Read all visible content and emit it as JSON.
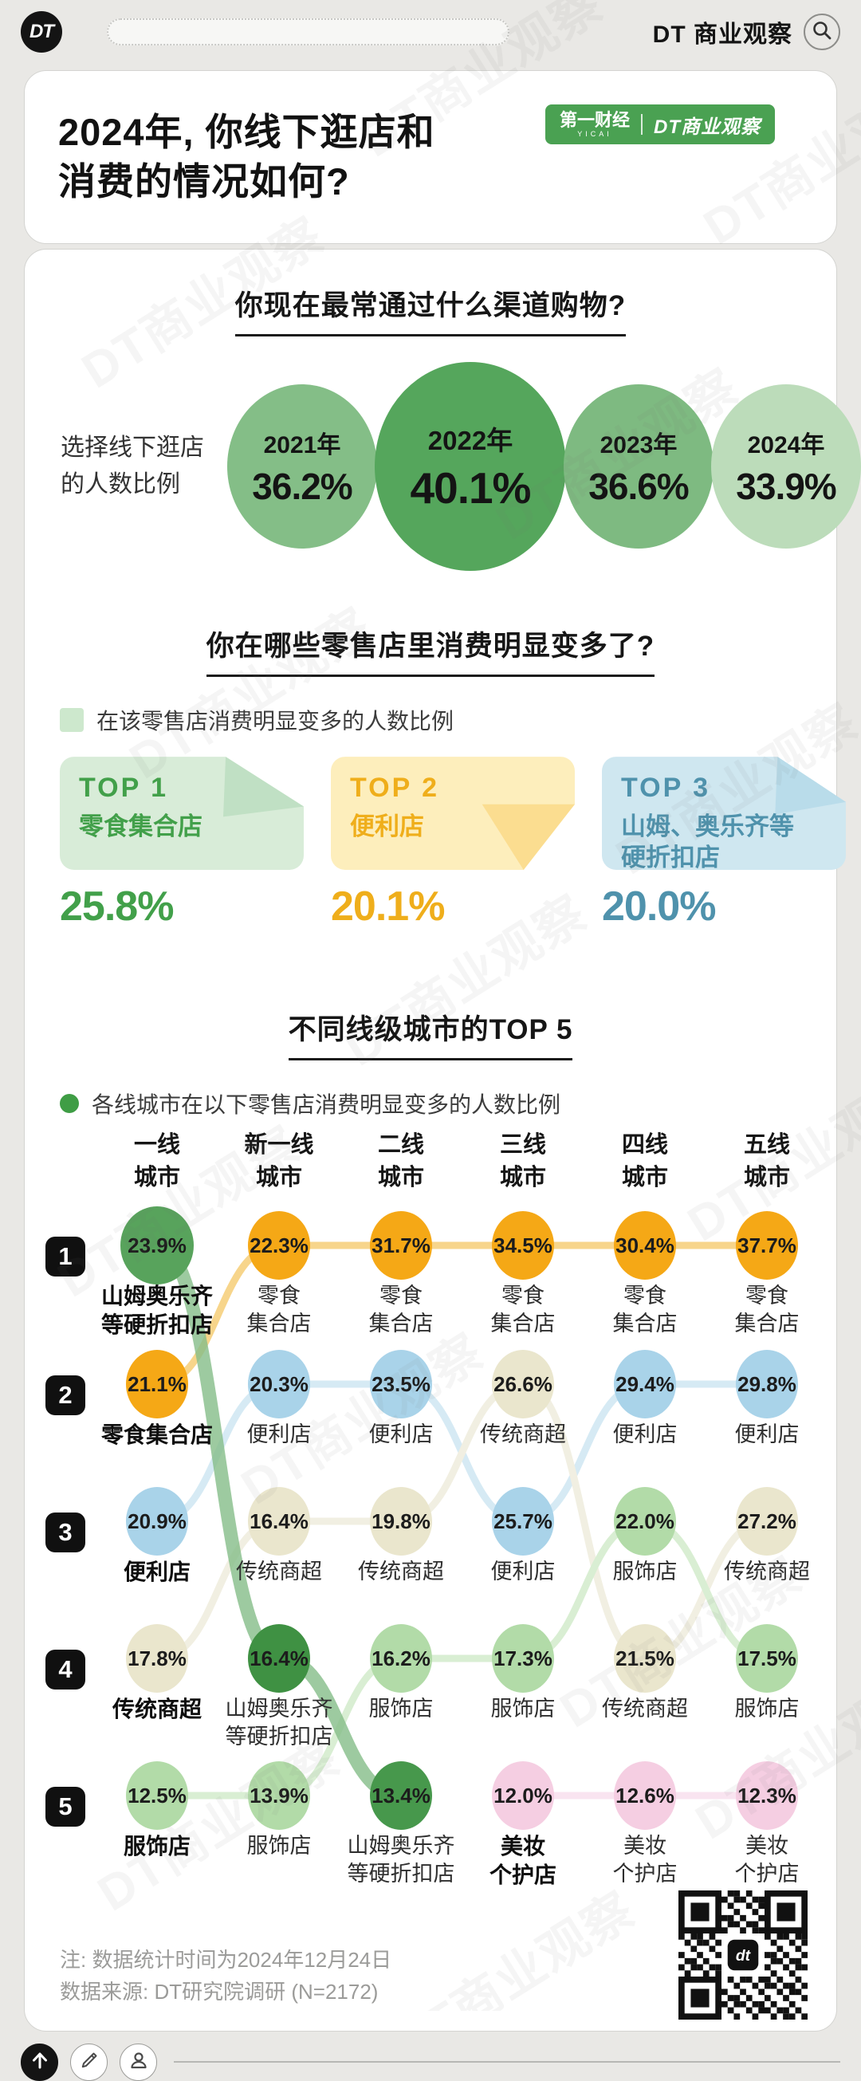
{
  "watermark": "DT商业观察",
  "qr_logo": "dt",
  "top_bar": {
    "logo": "DT",
    "brand": "DT 商业观察",
    "icons": {
      "search": "magnifier"
    }
  },
  "title_card": {
    "title_line1": "2024年, 你线下逛店和",
    "title_line2": "消费的情况如何?",
    "badge": {
      "left": "第一财经",
      "left_sub": "YICAI",
      "right": "DT商业观察",
      "bg": "#4aa152"
    }
  },
  "section1": {
    "heading": "你现在最常通过什么渠道购物?",
    "side_label": "选择线下逛店\n的人数比例",
    "bubbles": [
      {
        "year": "2021年",
        "value": "36.2%",
        "color": "#84be87",
        "big": false
      },
      {
        "year": "2022年",
        "value": "40.1%",
        "color": "#55a65c",
        "big": true
      },
      {
        "year": "2023年",
        "value": "36.6%",
        "color": "#7eba81",
        "big": false
      },
      {
        "year": "2024年",
        "value": "33.9%",
        "color": "#bcdcba",
        "big": false
      }
    ]
  },
  "section2": {
    "heading": "你在哪些零售店里消费明显变多了?",
    "legend": "在该零售店消费明显变多的人数比例",
    "legend_color": "#cde8cd",
    "cards": [
      {
        "rank": "TOP 1",
        "name": "零食集合店",
        "value": "25.8%",
        "bg": "#d8ecd8",
        "fold": "#c0e0c4",
        "color": "#42a04a"
      },
      {
        "rank": "TOP 2",
        "name": "便利店",
        "value": "20.1%",
        "bg": "#fdeebc",
        "fold": "#fbdd90",
        "color": "#efae1b"
      },
      {
        "rank": "TOP 3",
        "name": "山姆、奥乐齐等\n硬折扣店",
        "value": "20.0%",
        "bg": "#cfe7f0",
        "fold": "#b9dcea",
        "color": "#4f92ac"
      }
    ]
  },
  "section3": {
    "heading": "不同线级城市的TOP 5",
    "legend": "各线城市在以下零售店消费明显变多的人数比例",
    "legend_color": "#3f9d45",
    "columns": [
      "一线\n城市",
      "新一线\n城市",
      "二线\n城市",
      "三线\n城市",
      "四线\n城市",
      "五线\n城市"
    ],
    "ranks": [
      "1",
      "2",
      "3",
      "4",
      "5"
    ],
    "categories": {
      "snack": {
        "label": "零食集合店",
        "circle": "#f5a816",
        "line": "#f7d58b",
        "thick": false
      },
      "conv": {
        "label": "便利店",
        "circle": "#a9d3e9",
        "line": "#d6eaf4",
        "thick": false
      },
      "super": {
        "label": "传统商超",
        "circle": "#eae6cd",
        "line": "#f1efe2",
        "thick": false
      },
      "apparel": {
        "label": "服饰店",
        "circle": "#b2dba8",
        "line": "#d9eed3",
        "thick": false
      },
      "beauty": {
        "label": "美妆个护店",
        "circle": "#f5cee2",
        "line": "#f9e4f0",
        "thick": false
      },
      "sam": {
        "label": "山姆奥乐齐等硬折扣店",
        "circle": "#4e9c53",
        "line": "rgba(133,189,136,0.8)",
        "thick": true
      }
    },
    "draw_order": [
      "snack",
      "conv",
      "super",
      "apparel",
      "beauty",
      "sam"
    ],
    "cells": [
      {
        "r": 0,
        "c": 0,
        "v": "23.9%",
        "s": "山姆奥乐齐\n等硬折扣店",
        "cat": "sam",
        "b": true,
        "color": "#58a35c"
      },
      {
        "r": 0,
        "c": 1,
        "v": "22.3%",
        "s": "零食\n集合店",
        "cat": "snack",
        "b": false
      },
      {
        "r": 0,
        "c": 2,
        "v": "31.7%",
        "s": "零食\n集合店",
        "cat": "snack",
        "b": false
      },
      {
        "r": 0,
        "c": 3,
        "v": "34.5%",
        "s": "零食\n集合店",
        "cat": "snack",
        "b": false
      },
      {
        "r": 0,
        "c": 4,
        "v": "30.4%",
        "s": "零食\n集合店",
        "cat": "snack",
        "b": false
      },
      {
        "r": 0,
        "c": 5,
        "v": "37.7%",
        "s": "零食\n集合店",
        "cat": "snack",
        "b": false
      },
      {
        "r": 1,
        "c": 0,
        "v": "21.1%",
        "s": "零食集合店",
        "cat": "snack",
        "b": true
      },
      {
        "r": 1,
        "c": 1,
        "v": "20.3%",
        "s": "便利店",
        "cat": "conv",
        "b": false
      },
      {
        "r": 1,
        "c": 2,
        "v": "23.5%",
        "s": "便利店",
        "cat": "conv",
        "b": false
      },
      {
        "r": 1,
        "c": 3,
        "v": "26.6%",
        "s": "传统商超",
        "cat": "super",
        "b": false
      },
      {
        "r": 1,
        "c": 4,
        "v": "29.4%",
        "s": "便利店",
        "cat": "conv",
        "b": false
      },
      {
        "r": 1,
        "c": 5,
        "v": "29.8%",
        "s": "便利店",
        "cat": "conv",
        "b": false
      },
      {
        "r": 2,
        "c": 0,
        "v": "20.9%",
        "s": "便利店",
        "cat": "conv",
        "b": true
      },
      {
        "r": 2,
        "c": 1,
        "v": "16.4%",
        "s": "传统商超",
        "cat": "super",
        "b": false
      },
      {
        "r": 2,
        "c": 2,
        "v": "19.8%",
        "s": "传统商超",
        "cat": "super",
        "b": false
      },
      {
        "r": 2,
        "c": 3,
        "v": "25.7%",
        "s": "便利店",
        "cat": "conv",
        "b": false
      },
      {
        "r": 2,
        "c": 4,
        "v": "22.0%",
        "s": "服饰店",
        "cat": "apparel",
        "b": false
      },
      {
        "r": 2,
        "c": 5,
        "v": "27.2%",
        "s": "传统商超",
        "cat": "super",
        "b": false
      },
      {
        "r": 3,
        "c": 0,
        "v": "17.8%",
        "s": "传统商超",
        "cat": "super",
        "b": true
      },
      {
        "r": 3,
        "c": 1,
        "v": "16.4%",
        "s": "山姆奥乐齐\n等硬折扣店",
        "cat": "sam",
        "b": false,
        "color": "#3f9143"
      },
      {
        "r": 3,
        "c": 2,
        "v": "16.2%",
        "s": "服饰店",
        "cat": "apparel",
        "b": false
      },
      {
        "r": 3,
        "c": 3,
        "v": "17.3%",
        "s": "服饰店",
        "cat": "apparel",
        "b": false
      },
      {
        "r": 3,
        "c": 4,
        "v": "21.5%",
        "s": "传统商超",
        "cat": "super",
        "b": false
      },
      {
        "r": 3,
        "c": 5,
        "v": "17.5%",
        "s": "服饰店",
        "cat": "apparel",
        "b": false
      },
      {
        "r": 4,
        "c": 0,
        "v": "12.5%",
        "s": "服饰店",
        "cat": "apparel",
        "b": true
      },
      {
        "r": 4,
        "c": 1,
        "v": "13.9%",
        "s": "服饰店",
        "cat": "apparel",
        "b": false
      },
      {
        "r": 4,
        "c": 2,
        "v": "13.4%",
        "s": "山姆奥乐齐\n等硬折扣店",
        "cat": "sam",
        "b": false,
        "color": "#47984c"
      },
      {
        "r": 4,
        "c": 3,
        "v": "12.0%",
        "s": "美妆\n个护店",
        "cat": "beauty",
        "b": true
      },
      {
        "r": 4,
        "c": 4,
        "v": "12.6%",
        "s": "美妆\n个护店",
        "cat": "beauty",
        "b": false
      },
      {
        "r": 4,
        "c": 5,
        "v": "12.3%",
        "s": "美妆\n个护店",
        "cat": "beauty",
        "b": false
      }
    ]
  },
  "footnote": {
    "line1": "注: 数据统计时间为2024年12月24日",
    "line2": "数据来源: DT研究院调研 (N=2172)"
  },
  "chart_data": [
    {
      "type": "bar",
      "title": "你现在最常通过什么渠道购物?",
      "series_label": "选择线下逛店的人数比例",
      "categories": [
        "2021年",
        "2022年",
        "2023年",
        "2024年"
      ],
      "values": [
        36.2,
        40.1,
        36.6,
        33.9
      ],
      "unit": "%"
    },
    {
      "type": "bar",
      "title": "你在哪些零售店里消费明显变多了?",
      "legend": "在该零售店消费明显变多的人数比例",
      "categories": [
        "零食集合店",
        "便利店",
        "山姆、奥乐齐等硬折扣店"
      ],
      "values": [
        25.8,
        20.1,
        20.0
      ],
      "unit": "%"
    },
    {
      "type": "line",
      "subtype": "bump-rank",
      "title": "不同线级城市的TOP 5",
      "legend": "各线城市在以下零售店消费明显变多的人数比例",
      "x": [
        "一线城市",
        "新一线城市",
        "二线城市",
        "三线城市",
        "四线城市",
        "五线城市"
      ],
      "series": [
        {
          "name": "山姆奥乐齐等硬折扣店",
          "ranks": [
            1,
            4,
            5,
            null,
            null,
            null
          ],
          "values": [
            23.9,
            16.4,
            13.4,
            null,
            null,
            null
          ]
        },
        {
          "name": "零食集合店",
          "ranks": [
            2,
            1,
            1,
            1,
            1,
            1
          ],
          "values": [
            21.1,
            22.3,
            31.7,
            34.5,
            30.4,
            37.7
          ]
        },
        {
          "name": "便利店",
          "ranks": [
            3,
            2,
            2,
            3,
            2,
            2
          ],
          "values": [
            20.9,
            20.3,
            23.5,
            25.7,
            29.4,
            29.8
          ]
        },
        {
          "name": "传统商超",
          "ranks": [
            4,
            3,
            3,
            2,
            4,
            3
          ],
          "values": [
            17.8,
            16.4,
            19.8,
            26.6,
            21.5,
            27.2
          ]
        },
        {
          "name": "服饰店",
          "ranks": [
            5,
            5,
            4,
            4,
            3,
            4
          ],
          "values": [
            12.5,
            13.9,
            16.2,
            17.3,
            22.0,
            17.5
          ]
        },
        {
          "name": "美妆个护店",
          "ranks": [
            null,
            null,
            null,
            5,
            5,
            5
          ],
          "values": [
            null,
            null,
            null,
            12.0,
            12.6,
            12.3
          ]
        }
      ],
      "unit": "%"
    }
  ]
}
